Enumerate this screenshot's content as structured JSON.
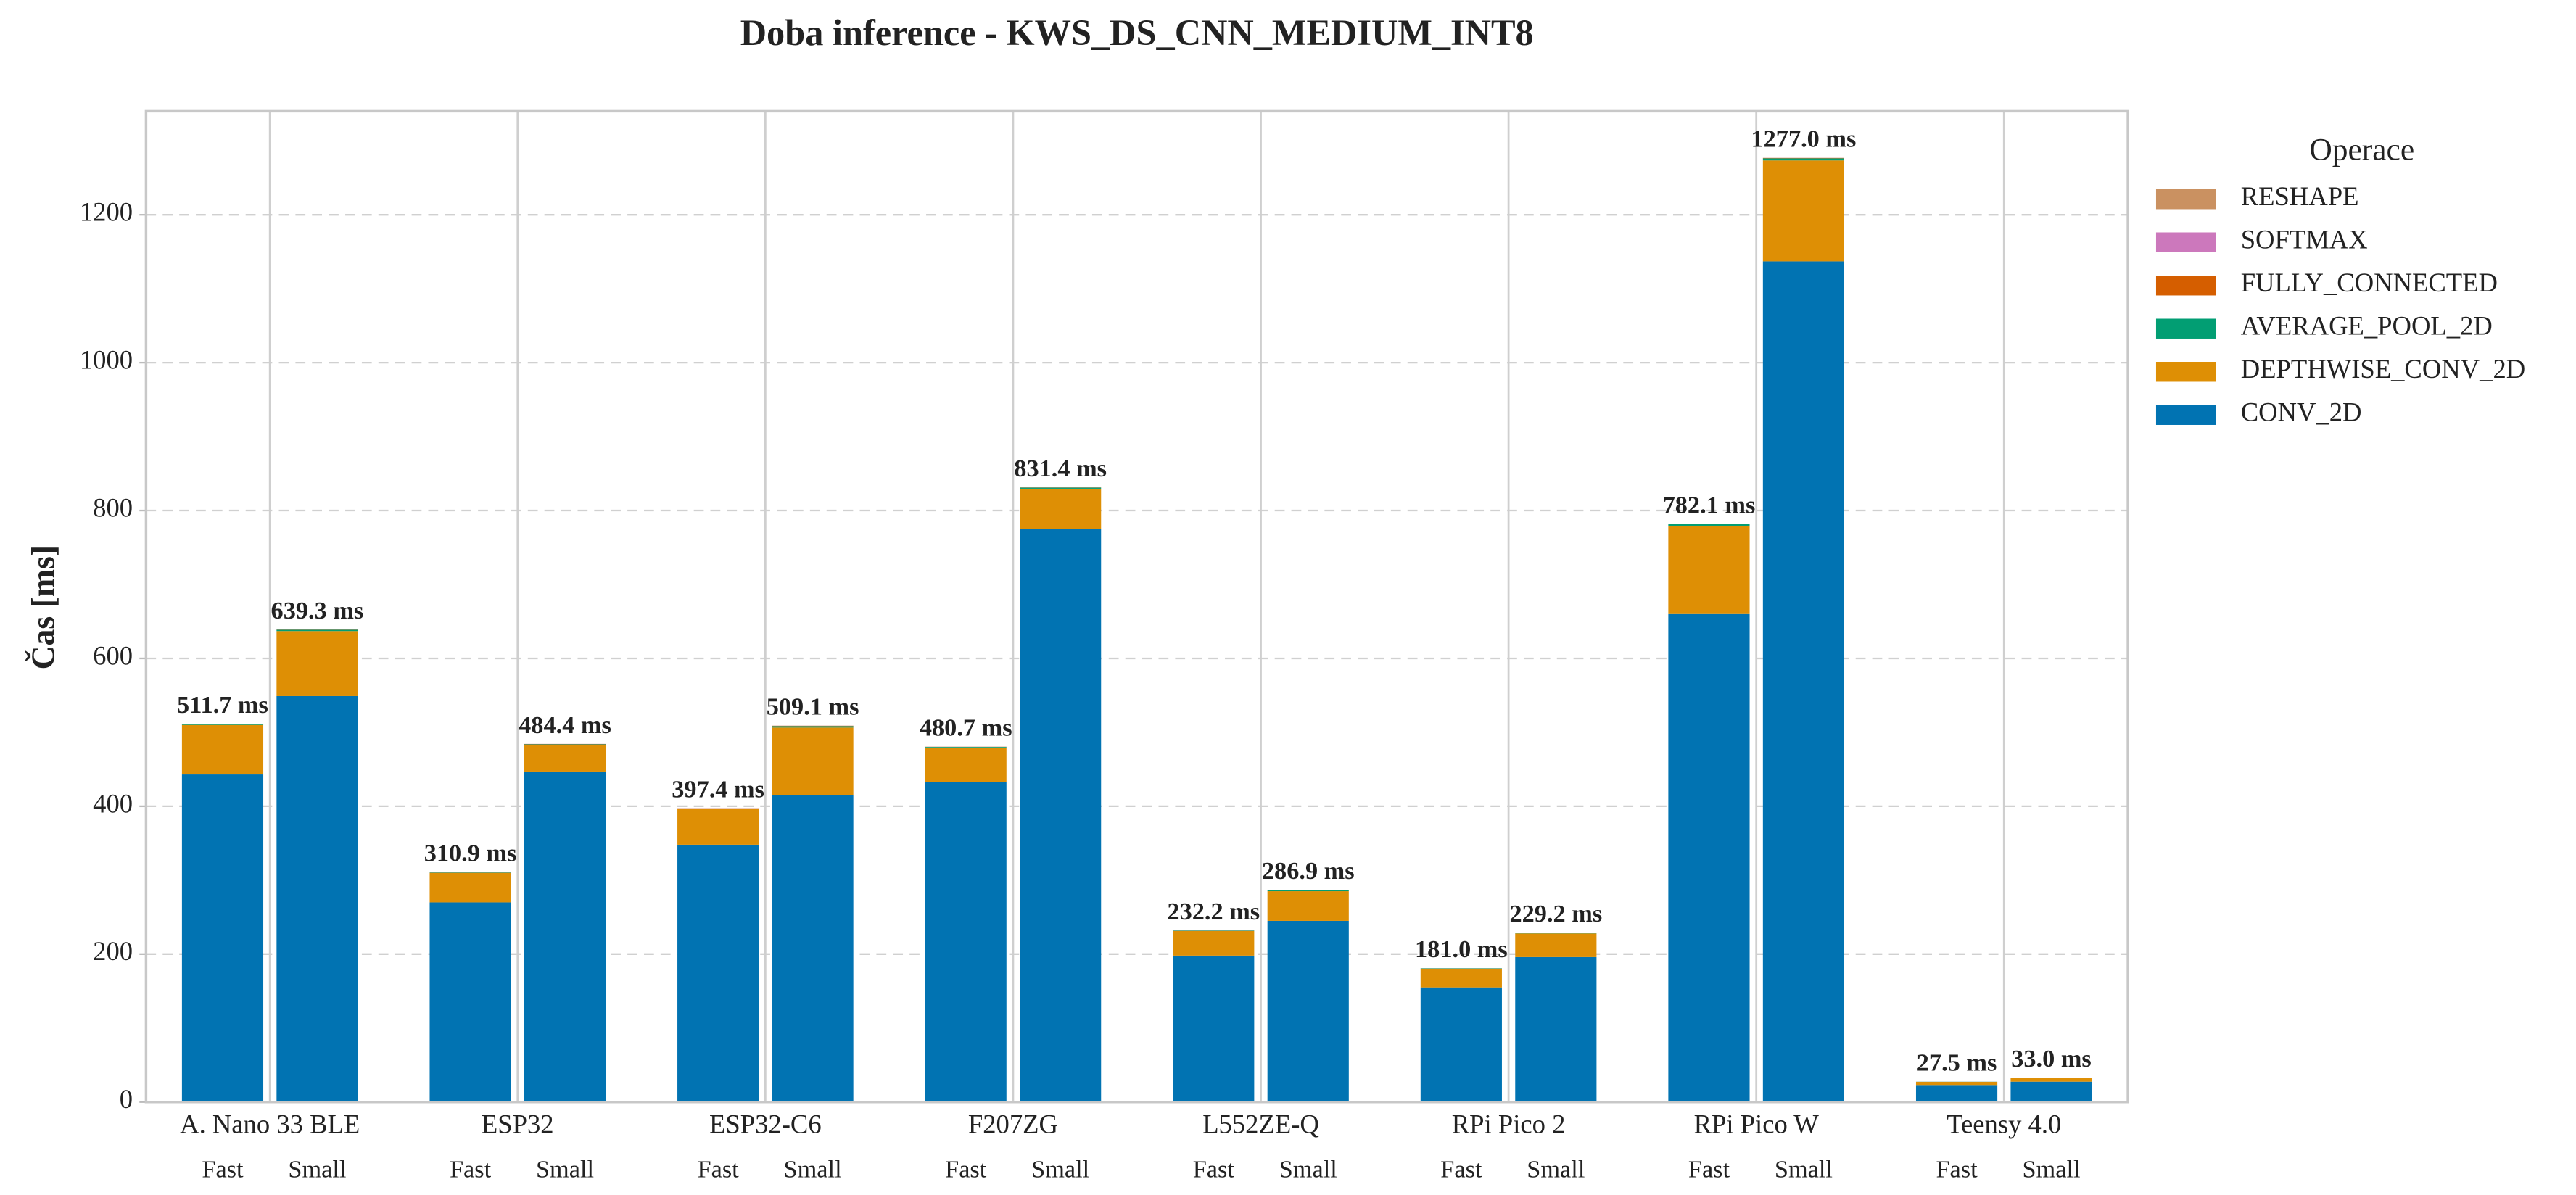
{
  "chart_data": {
    "type": "grouped-stacked-bar",
    "title": "Doba inference - KWS_DS_CNN_MEDIUM_INT8",
    "y_label": "Čas [ms]",
    "legend_title": "Operace",
    "legend": "upper right outside",
    "grid": true,
    "categories": [
      "A. Nano 33 BLE",
      "ESP32",
      "ESP32-C6",
      "F207ZG",
      "L552ZE-Q",
      "RPi Pico 2",
      "RPi Pico W",
      "Teensy 4.0"
    ],
    "subcategories": [
      "Fast",
      "Small"
    ],
    "ylim": [
      0,
      1340
    ],
    "yticks": [
      0,
      200,
      400,
      600,
      800,
      1000,
      1200
    ],
    "series": [
      {
        "name": "CONV_2D",
        "color": "#0173b2",
        "values": [
          [
            443,
            549
          ],
          [
            270,
            447
          ],
          [
            348,
            415
          ],
          [
            433,
            775
          ],
          [
            198,
            245
          ],
          [
            155,
            196
          ],
          [
            660,
            1137
          ],
          [
            23,
            27.5
          ]
        ]
      },
      {
        "name": "DEPTHWISE_CONV_2D",
        "color": "#de8f05",
        "values": [
          [
            67.0,
            88
          ],
          [
            39.8,
            35.6
          ],
          [
            48.0,
            91.5
          ],
          [
            46.5,
            54.5
          ],
          [
            33.3,
            40.1
          ],
          [
            25.3,
            32.0
          ],
          [
            119.4,
            136.5
          ],
          [
            4.2,
            5.1
          ]
        ]
      },
      {
        "name": "AVERAGE_POOL_2D",
        "color": "#029e73",
        "values": [
          [
            1.0,
            1.8
          ],
          [
            0.6,
            1.2
          ],
          [
            0.9,
            1.9
          ],
          [
            0.8,
            1.4
          ],
          [
            0.6,
            1.4
          ],
          [
            0.5,
            0.9
          ],
          [
            2.0,
            2.8
          ],
          [
            0.2,
            0.3
          ]
        ]
      },
      {
        "name": "FULLY_CONNECTED",
        "color": "#d55e00",
        "values": [
          [
            0.5,
            0.3
          ],
          [
            0.3,
            0.4
          ],
          [
            0.3,
            0.5
          ],
          [
            0.2,
            0.3
          ],
          [
            0.1,
            0.2
          ],
          [
            0.1,
            0.2
          ],
          [
            0.5,
            0.5
          ],
          [
            0.05,
            0.05
          ]
        ]
      },
      {
        "name": "SOFTMAX",
        "color": "#cc78bc",
        "values": [
          [
            0.1,
            0.1
          ],
          [
            0.1,
            0.1
          ],
          [
            0.1,
            0.1
          ],
          [
            0.1,
            0.1
          ],
          [
            0.1,
            0.1
          ],
          [
            0.05,
            0.05
          ],
          [
            0.1,
            0.1
          ],
          [
            0.03,
            0.03
          ]
        ]
      },
      {
        "name": "RESHAPE",
        "color": "#ca9161",
        "values": [
          [
            0.1,
            0.1
          ],
          [
            0.1,
            0.1
          ],
          [
            0.1,
            0.1
          ],
          [
            0.1,
            0.1
          ],
          [
            0.1,
            0.1
          ],
          [
            0.05,
            0.05
          ],
          [
            0.1,
            0.1
          ],
          [
            0.02,
            0.02
          ]
        ]
      }
    ],
    "totals": {
      "values": [
        [
          511.7,
          639.3
        ],
        [
          310.9,
          484.4
        ],
        [
          397.4,
          509.1
        ],
        [
          480.7,
          831.4
        ],
        [
          232.2,
          286.9
        ],
        [
          181.0,
          229.2
        ],
        [
          782.1,
          1277.0
        ],
        [
          27.5,
          33.0
        ]
      ],
      "value_labels": [
        [
          "511.7 ms",
          "639.3 ms"
        ],
        [
          "310.9 ms",
          "484.4 ms"
        ],
        [
          "397.4 ms",
          "509.1 ms"
        ],
        [
          "480.7 ms",
          "831.4 ms"
        ],
        [
          "232.2 ms",
          "286.9 ms"
        ],
        [
          "181.0 ms",
          "229.2 ms"
        ],
        [
          "782.1 ms",
          "1277.0 ms"
        ],
        [
          "27.5 ms",
          "33.0 ms"
        ]
      ]
    }
  }
}
